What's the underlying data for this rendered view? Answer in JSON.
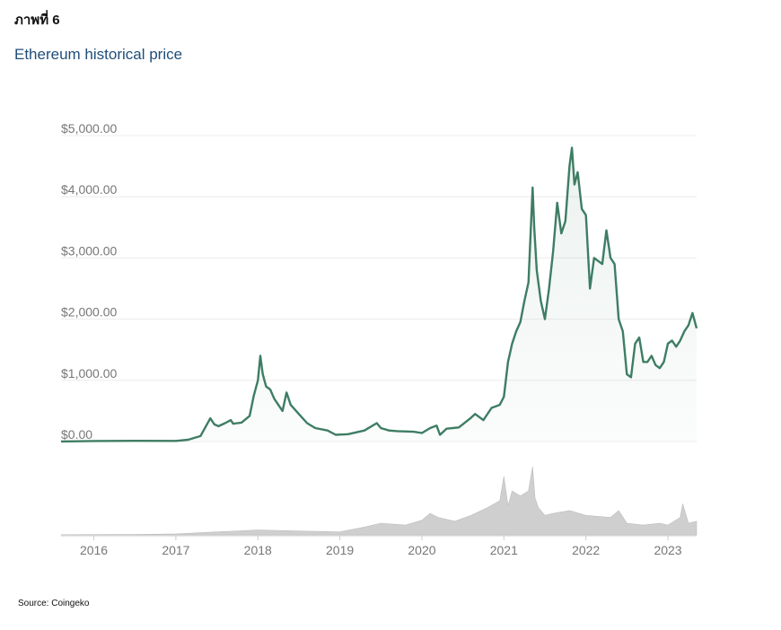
{
  "figure_label": "ภาพที่ 6",
  "title": "Ethereum historical price",
  "source": "Source: Coingeko",
  "colors": {
    "price_line": "#3e7d64",
    "volume": "#cfcfcf",
    "grid": "#ececec",
    "axis_text": "#777777"
  },
  "chart_data": {
    "type": "area",
    "title": "Ethereum historical price",
    "xlabel": "",
    "ylabel": "",
    "x_ticks": [
      "2016",
      "2017",
      "2018",
      "2019",
      "2020",
      "2021",
      "2022",
      "2023"
    ],
    "y_ticks": [
      "$5,000.00",
      "$4,000.00",
      "$3,000.00",
      "$2,000.00",
      "$1,000.00",
      "$0.00"
    ],
    "ylim": [
      0,
      5000
    ],
    "xlim": [
      2015.6,
      2023.35
    ],
    "grid": true,
    "series": [
      {
        "x": [
          2015.6,
          2016.0,
          2016.5,
          2017.0,
          2017.15,
          2017.3,
          2017.42,
          2017.47,
          2017.52,
          2017.6,
          2017.67,
          2017.7,
          2017.75,
          2017.8,
          2017.9,
          2017.95,
          2018.0,
          2018.03,
          2018.06,
          2018.1,
          2018.15,
          2018.2,
          2018.3,
          2018.35,
          2018.4,
          2018.5,
          2018.6,
          2018.7,
          2018.85,
          2018.95,
          2019.1,
          2019.3,
          2019.45,
          2019.5,
          2019.6,
          2019.7,
          2019.9,
          2020.0,
          2020.1,
          2020.18,
          2020.22,
          2020.3,
          2020.45,
          2020.6,
          2020.65,
          2020.75,
          2020.85,
          2020.95,
          2021.0,
          2021.05,
          2021.1,
          2021.15,
          2021.2,
          2021.25,
          2021.3,
          2021.35,
          2021.37,
          2021.4,
          2021.45,
          2021.5,
          2021.55,
          2021.6,
          2021.65,
          2021.7,
          2021.75,
          2021.8,
          2021.83,
          2021.86,
          2021.9,
          2021.95,
          2022.0,
          2022.05,
          2022.1,
          2022.2,
          2022.25,
          2022.3,
          2022.35,
          2022.4,
          2022.45,
          2022.5,
          2022.55,
          2022.6,
          2022.65,
          2022.7,
          2022.75,
          2022.8,
          2022.85,
          2022.9,
          2022.95,
          2023.0,
          2023.05,
          2023.1,
          2023.15,
          2023.2,
          2023.25,
          2023.3,
          2023.35
        ],
        "values": [
          1,
          9,
          12,
          10,
          30,
          90,
          380,
          280,
          250,
          300,
          350,
          290,
          300,
          310,
          420,
          750,
          1000,
          1400,
          1100,
          900,
          850,
          700,
          500,
          800,
          600,
          450,
          300,
          220,
          180,
          110,
          120,
          180,
          300,
          220,
          180,
          170,
          160,
          140,
          220,
          260,
          110,
          210,
          230,
          390,
          450,
          350,
          550,
          600,
          730,
          1300,
          1600,
          1800,
          1950,
          2300,
          2600,
          4150,
          3500,
          2800,
          2300,
          2000,
          2500,
          3100,
          3900,
          3400,
          3600,
          4500,
          4800,
          4200,
          4400,
          3800,
          3700,
          2500,
          3000,
          2900,
          3450,
          3000,
          2900,
          2000,
          1800,
          1100,
          1050,
          1600,
          1700,
          1300,
          1300,
          1400,
          1250,
          1200,
          1300,
          1600,
          1650,
          1550,
          1650,
          1800,
          1900,
          2100,
          1850
        ]
      }
    ],
    "volume_series": {
      "x": [
        2015.6,
        2016.5,
        2017.0,
        2017.5,
        2018.0,
        2018.5,
        2019.0,
        2019.3,
        2019.5,
        2019.8,
        2020.0,
        2020.1,
        2020.2,
        2020.4,
        2020.6,
        2020.8,
        2020.95,
        2021.0,
        2021.05,
        2021.1,
        2021.2,
        2021.3,
        2021.35,
        2021.38,
        2021.42,
        2021.5,
        2021.6,
        2021.8,
        2022.0,
        2022.3,
        2022.4,
        2022.5,
        2022.7,
        2022.9,
        2023.0,
        2023.15,
        2023.18,
        2023.25,
        2023.35
      ],
      "values": [
        0.2,
        0.5,
        1,
        3,
        5,
        4,
        3,
        8,
        12,
        10,
        15,
        22,
        18,
        14,
        20,
        28,
        35,
        60,
        30,
        45,
        40,
        45,
        70,
        38,
        28,
        20,
        22,
        25,
        20,
        18,
        25,
        12,
        10,
        12,
        10,
        18,
        32,
        12,
        14
      ]
    }
  }
}
